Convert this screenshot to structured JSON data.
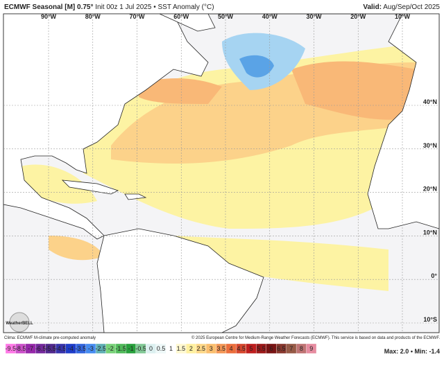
{
  "header": {
    "title_bold": "ECMWF Seasonal [M] 0.75°",
    "title_rest": "Init 00z 1 Jul 2025 • SST Anomaly (°C)",
    "valid_bold": "Valid:",
    "valid_rest": "Aug/Sep/Oct 2025"
  },
  "map": {
    "lon_labels": [
      "90°W",
      "80°W",
      "70°W",
      "60°W",
      "50°W",
      "40°W",
      "30°W",
      "20°W",
      "10°W"
    ],
    "lat_labels": [
      "40°N",
      "30°N",
      "20°N",
      "10°N",
      "0°",
      "10°S"
    ],
    "logo": "WeatherBELL"
  },
  "footer": {
    "clima": "Clima: ECMWF M-climate pre-computed anomaly",
    "copyright": "© 2025 European Centre for Medium-Range Weather Forecasts (ECMWF). This service is based on data and products of the ECMWF.",
    "legend": [
      "-9.5",
      "-8.5",
      "-7",
      "-6.5",
      "-5.5",
      "-4.5",
      "-4",
      "-3.5",
      "-3",
      "-2.5",
      "-2",
      "-1.5",
      "-1",
      "-0.5",
      "0",
      "0.5",
      "1",
      "1.5",
      "2",
      "2.5",
      "3",
      "3.5",
      "4",
      "4.5",
      "5",
      "5.5",
      "6",
      "6.5",
      "7",
      "8",
      "9"
    ],
    "max_label": "Max: 2.0",
    "min_label": "Min: -1.4"
  }
}
